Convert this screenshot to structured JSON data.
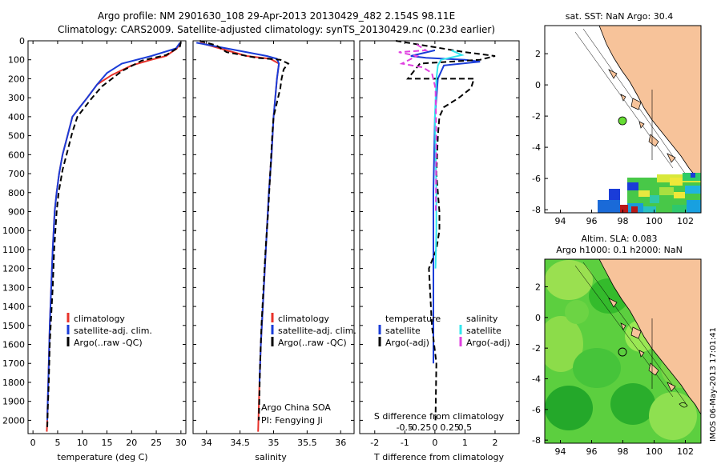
{
  "header": {
    "line1": "Argo profile: NM 2901630_108 29-Apr-2013 20130429_482 2.154S 98.11E",
    "line2": "Climatology: CARS2009. Satellite-adjusted climatology: synTS_20130429.nc (0.23d earlier)"
  },
  "stamp": "IMOS 06-May-2013 17:01:41",
  "colors": {
    "climatology": "#e8322a",
    "satellite": "#1a3cd8",
    "argo": "#000000",
    "sal_satellite": "#33e6ee",
    "sal_argo": "#e040e0",
    "land": "#f7c39a",
    "map_green": "#33cc33"
  },
  "chart_data": [
    {
      "type": "line",
      "name": "temperature-profile",
      "xlabel": "temperature (deg C)",
      "ylabel": "",
      "xlim": [
        -1,
        31
      ],
      "ylim": [
        2070,
        0
      ],
      "xticks": [
        0,
        5,
        10,
        15,
        20,
        25,
        30
      ],
      "yticks": [
        0,
        100,
        200,
        300,
        400,
        500,
        600,
        700,
        800,
        900,
        1000,
        1100,
        1200,
        1300,
        1400,
        1500,
        1600,
        1700,
        1800,
        1900,
        2000
      ],
      "legend": [
        "climatology",
        "satellite-adj. clim.",
        "Argo(..raw -QC)"
      ],
      "series": [
        {
          "name": "climatology",
          "color_key": "climatology",
          "dash": false,
          "x": [
            29.9,
            29.2,
            27,
            24,
            20,
            16,
            13,
            11,
            9.5,
            8,
            7,
            6,
            5.3,
            4.8,
            4.4,
            4.0,
            3.7,
            3.4,
            3.2,
            3.0,
            2.9,
            2.8
          ],
          "y": [
            10,
            40,
            80,
            100,
            130,
            180,
            230,
            300,
            350,
            400,
            500,
            600,
            700,
            800,
            900,
            1100,
            1300,
            1500,
            1700,
            1900,
            2000,
            2060
          ]
        },
        {
          "name": "satellite-adj. clim.",
          "color_key": "satellite",
          "dash": false,
          "x": [
            29.8,
            29.0,
            24,
            18,
            15,
            13,
            11,
            9.5,
            8,
            7,
            6,
            5.3,
            4.8,
            4.4,
            4.0,
            3.7,
            3.4,
            3.2,
            3.0,
            2.9
          ],
          "y": [
            10,
            40,
            80,
            120,
            170,
            230,
            300,
            350,
            400,
            500,
            600,
            700,
            800,
            900,
            1100,
            1300,
            1500,
            1700,
            1900,
            2000
          ]
        },
        {
          "name": "Argo(..raw -QC)",
          "color_key": "argo",
          "dash": true,
          "x": [
            30.0,
            29.8,
            27,
            22,
            18,
            15.5,
            14,
            12,
            10.5,
            9,
            8,
            7,
            6,
            5.2,
            4.8,
            4.3,
            4.0,
            3.7,
            3.4,
            3.2,
            3.0,
            2.9
          ],
          "y": [
            5,
            30,
            75,
            105,
            160,
            210,
            240,
            300,
            350,
            400,
            480,
            580,
            680,
            800,
            900,
            1100,
            1300,
            1450,
            1600,
            1800,
            1950,
            2040
          ]
        }
      ]
    },
    {
      "type": "line",
      "name": "salinity-profile",
      "xlabel": "salinity",
      "ylabel": "",
      "xlim": [
        33.8,
        36.2
      ],
      "ylim": [
        2070,
        0
      ],
      "xticks": [
        34,
        34.5,
        35,
        35.5,
        36
      ],
      "legend": [
        "climatology",
        "satellite-adj. clim.",
        "Argo(..raw -QC)"
      ],
      "annotations": [
        "Argo China SOA",
        "PI: Fengying Ji"
      ],
      "series": [
        {
          "name": "climatology",
          "color_key": "climatology",
          "dash": false,
          "x": [
            33.9,
            34.1,
            34.6,
            34.95,
            35.08,
            35.05,
            35.0,
            34.97,
            34.93,
            34.9,
            34.87,
            34.84,
            34.81,
            34.79,
            34.77
          ],
          "y": [
            10,
            30,
            80,
            95,
            120,
            200,
            400,
            600,
            800,
            1000,
            1200,
            1400,
            1600,
            1800,
            2060
          ]
        },
        {
          "name": "satellite-adj. clim.",
          "color_key": "satellite",
          "dash": false,
          "x": [
            33.85,
            34.3,
            34.9,
            35.05,
            35.08,
            35.05,
            35.0,
            34.97,
            34.93,
            34.9,
            34.87,
            34.84,
            34.81,
            34.79
          ],
          "y": [
            10,
            40,
            80,
            95,
            120,
            200,
            400,
            600,
            800,
            1000,
            1200,
            1400,
            1600,
            1800
          ]
        },
        {
          "name": "Argo(..raw -QC)",
          "color_key": "argo",
          "dash": true,
          "x": [
            33.9,
            34.15,
            34.3,
            34.75,
            35.1,
            35.22,
            35.15,
            35.12,
            35.1,
            35.0,
            34.98,
            34.95,
            34.92,
            34.88,
            34.85,
            34.82,
            34.8,
            34.78
          ],
          "y": [
            0,
            25,
            60,
            90,
            100,
            120,
            150,
            200,
            250,
            400,
            500,
            700,
            900,
            1100,
            1300,
            1500,
            1700,
            2000
          ]
        }
      ]
    },
    {
      "type": "line",
      "name": "difference-profile",
      "xlabel": "T difference from climatology",
      "xlabel2": "S difference from climatology",
      "xlim": [
        -2.5,
        2.8
      ],
      "ylim": [
        2070,
        0
      ],
      "xticks_t": [
        "-2",
        "-1",
        "0",
        "1",
        "2"
      ],
      "xticks_s": [
        "-0.5",
        "-0.25",
        "0",
        "0.25",
        "0.5"
      ],
      "legend_groups": [
        {
          "title": "temperature",
          "entries": [
            "satellite",
            "Argo(-adj)"
          ]
        },
        {
          "title": "salinity",
          "entries": [
            "satellite",
            "Argo(-adj)"
          ]
        }
      ],
      "series": [
        {
          "name": "temperature satellite",
          "color_key": "satellite",
          "dash": false,
          "x": [
            0,
            -0.8,
            -0.3,
            1.0,
            1.5,
            0.3,
            0.1,
            0,
            -0.05,
            -0.05,
            -0.05
          ],
          "y": [
            50,
            80,
            90,
            100,
            110,
            130,
            200,
            400,
            800,
            1200,
            1700
          ]
        },
        {
          "name": "temperature Argo(-adj)",
          "color_key": "argo",
          "dash": true,
          "x": [
            -1.3,
            1.0,
            2.0,
            1.5,
            -0.5,
            -0.9,
            1.3,
            1.2,
            0.8,
            0.3,
            0.15,
            0.1,
            0.05,
            0.15,
            0.15,
            0.05,
            -0.2,
            -0.1,
            0.05,
            0.02
          ],
          "y": [
            0,
            60,
            80,
            100,
            120,
            200,
            200,
            250,
            300,
            350,
            400,
            500,
            700,
            900,
            1000,
            1100,
            1200,
            1500,
            1700,
            2000
          ]
        },
        {
          "name": "salinity satellite",
          "color_key": "sal_satellite",
          "dash": false,
          "x": [
            0.55,
            0.9,
            0.2,
            0.1,
            0.05,
            0.0,
            0.05,
            0.05,
            0.02
          ],
          "y": [
            50,
            75,
            100,
            130,
            200,
            400,
            800,
            1000,
            1200
          ]
        },
        {
          "name": "salinity Argo(-adj)",
          "color_key": "sal_argo",
          "dash": true,
          "x": [
            -0.6,
            -0.3,
            -1.2,
            -0.6,
            -1.1,
            -0.4,
            -0.1,
            0.02,
            0.05,
            0.03
          ],
          "y": [
            20,
            50,
            60,
            80,
            120,
            140,
            170,
            250,
            500,
            900
          ]
        }
      ]
    }
  ],
  "maps": {
    "sst": {
      "title": "sat. SST: NaN Argo: 30.4",
      "xticks": [
        "94",
        "96",
        "98",
        "100",
        "102"
      ],
      "yticks": [
        "2",
        "0",
        "-2",
        "-4",
        "-6",
        "-8"
      ],
      "xrange": [
        93,
        103
      ],
      "yrange": [
        -8.2,
        3.8
      ],
      "point": {
        "lon": 98.1,
        "lat": -2.15
      }
    },
    "sla": {
      "title1": "Altim. SLA: 0.083",
      "title2": "Argo h1000: 0.1 h2000: NaN",
      "xticks": [
        "94",
        "96",
        "98",
        "100",
        "102"
      ],
      "yticks": [
        "2",
        "0",
        "-2",
        "-4",
        "-6",
        "-8"
      ],
      "xrange": [
        93,
        103
      ],
      "yrange": [
        -8.2,
        3.8
      ],
      "point": {
        "lon": 98.1,
        "lat": -2.15
      }
    }
  }
}
